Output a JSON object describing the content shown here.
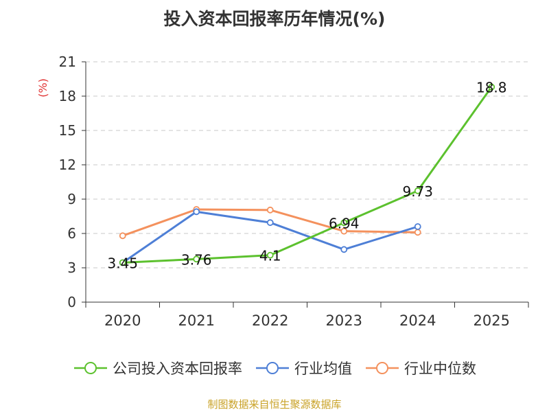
{
  "title": "投入资本回报率历年情况(%)",
  "source": "制图数据来自恒生聚源数据库",
  "colors": {
    "company": "#5cc12e",
    "avg": "#4e7fd6",
    "median": "#f4915d",
    "axis": "#333333",
    "grid": "#c8c8c8",
    "unit": "#e03030"
  },
  "chart_data": {
    "type": "line",
    "title": "投入资本回报率历年情况(%)",
    "ylabel": "(%)",
    "xlabel": "",
    "categories": [
      "2020",
      "2021",
      "2022",
      "2023",
      "2024",
      "2025"
    ],
    "ylim": [
      0,
      21
    ],
    "yticks": [
      "0",
      "3",
      "6",
      "9",
      "12",
      "15",
      "18",
      "21"
    ],
    "grid": "horizontal dashed",
    "legend_position": "bottom",
    "series": [
      {
        "name": "公司投入资本回报率",
        "values": [
          3.45,
          3.76,
          4.1,
          6.94,
          9.73,
          18.8
        ],
        "labels": [
          "3.45",
          "3.76",
          "4.1",
          "6.94",
          "9.73",
          "18.8"
        ]
      },
      {
        "name": "行业均值",
        "values": [
          3.45,
          7.9,
          6.95,
          4.6,
          6.6,
          null
        ]
      },
      {
        "name": "行业中位数",
        "values": [
          5.8,
          8.1,
          8.05,
          6.2,
          6.1,
          null
        ]
      }
    ]
  }
}
